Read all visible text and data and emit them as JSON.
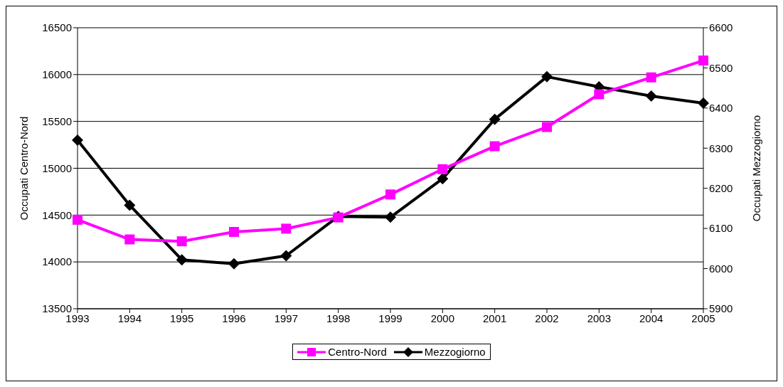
{
  "chart_data": {
    "type": "line",
    "xlabel": null,
    "ylabel": "Occupati Centro-Nord",
    "y2label": "Occupati Mezzogiorno",
    "categories": [
      "1993",
      "1994",
      "1995",
      "1996",
      "1997",
      "1998",
      "1999",
      "2000",
      "2001",
      "2002",
      "2003",
      "2004",
      "2005"
    ],
    "series": [
      {
        "name": "Centro-Nord",
        "color": "#ff00ff",
        "marker": "square",
        "values": [
          14450,
          14240,
          14220,
          14320,
          14355,
          14475,
          14720,
          14990,
          15235,
          15440,
          15790,
          15970,
          16150
        ]
      },
      {
        "name": "Mezzogiorno",
        "color": "#000000",
        "marker": "diamond",
        "axis": "y2",
        "values": [
          6320,
          6158,
          6022,
          6012,
          6032,
          6130,
          6128,
          6224,
          6372,
          6478,
          6453,
          6430,
          6412
        ]
      }
    ],
    "ylim": [
      13500,
      16500
    ],
    "yticks": [
      13500,
      14000,
      14500,
      15000,
      15500,
      16000,
      16500
    ],
    "y2lim": [
      5900,
      6600
    ],
    "y2ticks": [
      5900,
      6000,
      6100,
      6200,
      6300,
      6400,
      6500,
      6600
    ],
    "grid": "y",
    "legend": "bottom",
    "line_style": "solid"
  }
}
